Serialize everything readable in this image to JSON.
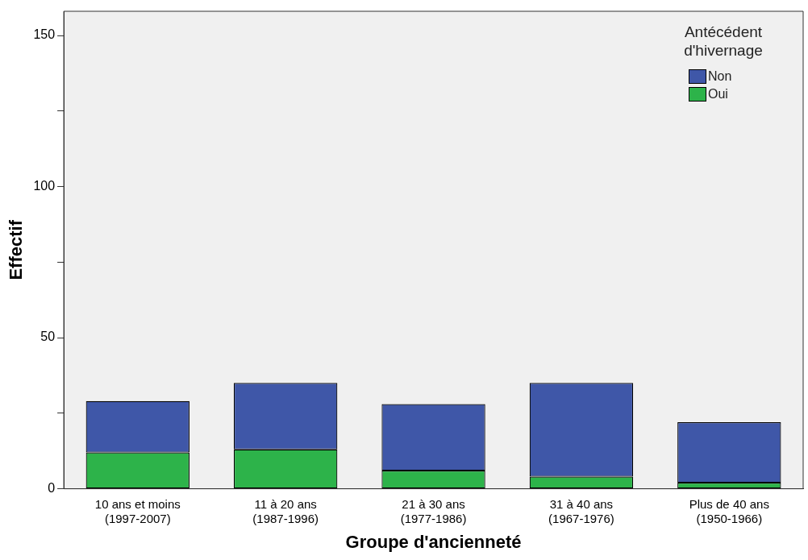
{
  "chart_data": {
    "type": "bar",
    "xlabel": "Groupe d'ancienneté",
    "ylabel": "Effectif",
    "legend_title": "Antécédent d'hivernage",
    "categories": [
      "10 ans et moins\n(1997-2007)",
      "11 à 20 ans\n(1987-1996)",
      "21 à 30 ans\n(1977-1986)",
      "31 à 40 ans\n(1967-1976)",
      "Plus de 40 ans\n(1950-1966)"
    ],
    "series": [
      {
        "name": "Oui",
        "color": "#2db34a",
        "values": [
          12,
          13,
          6,
          4,
          2
        ]
      },
      {
        "name": "Non",
        "color": "#3f57a8",
        "values": [
          17,
          22,
          22,
          31,
          20
        ]
      }
    ],
    "stacked": true,
    "ylim": [
      0,
      158
    ],
    "yticks": [
      0,
      {
        "value": 25,
        "label": null
      },
      50,
      {
        "value": 75,
        "label": null
      },
      100,
      {
        "value": 125,
        "label": null
      },
      150
    ],
    "legend": "top right",
    "grid": false
  }
}
